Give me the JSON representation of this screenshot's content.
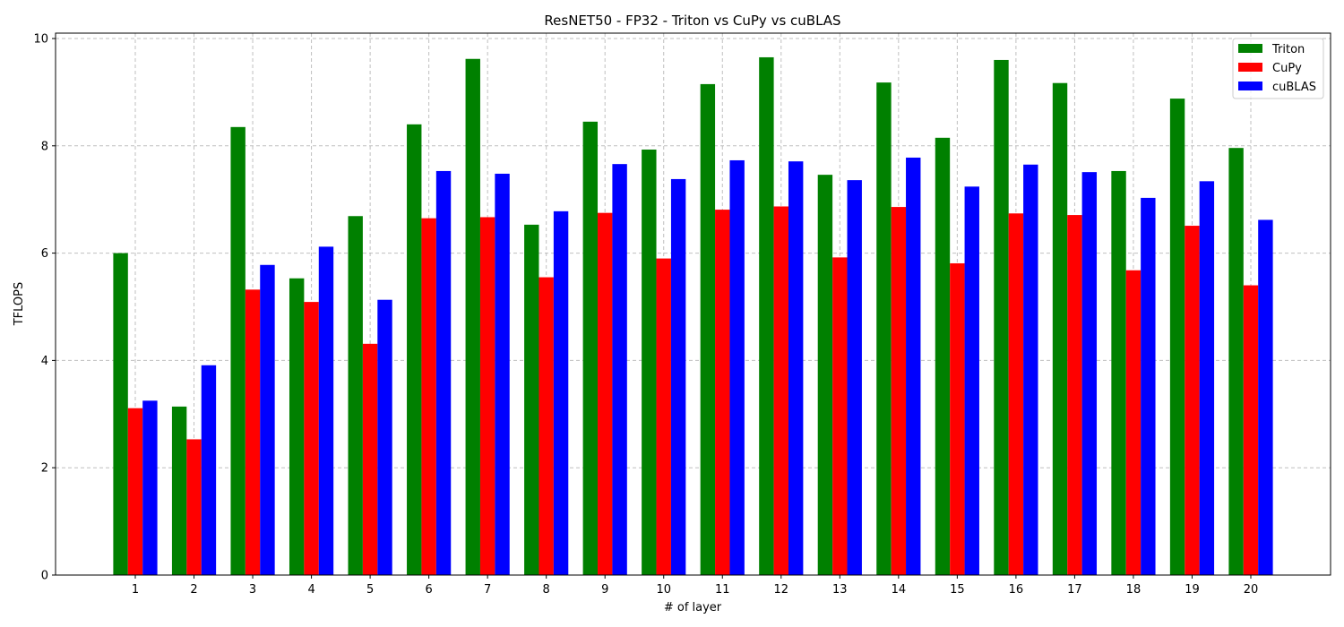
{
  "chart_data": {
    "type": "bar",
    "title": "ResNET50 - FP32 - Triton vs CuPy vs cuBLAS",
    "xlabel": "# of layer",
    "ylabel": "TFLOPS",
    "ylim": [
      0,
      10.1
    ],
    "yticks": [
      0,
      2,
      4,
      6,
      8,
      10
    ],
    "grid": true,
    "legend_position": "top-right",
    "categories": [
      "1",
      "2",
      "3",
      "4",
      "5",
      "6",
      "7",
      "8",
      "9",
      "10",
      "11",
      "12",
      "13",
      "14",
      "15",
      "16",
      "17",
      "18",
      "19",
      "20"
    ],
    "series": [
      {
        "name": "Triton",
        "color": "#008000",
        "values": [
          6.0,
          3.14,
          8.35,
          5.53,
          6.69,
          8.4,
          9.62,
          6.53,
          8.45,
          7.93,
          9.15,
          9.65,
          7.46,
          9.18,
          8.15,
          9.6,
          9.17,
          7.53,
          8.88,
          7.96
        ]
      },
      {
        "name": "CuPy",
        "color": "#ff0000",
        "values": [
          3.11,
          2.53,
          5.32,
          5.09,
          4.31,
          6.65,
          6.67,
          5.55,
          6.75,
          5.9,
          6.81,
          6.87,
          5.92,
          6.86,
          5.81,
          6.74,
          6.71,
          5.68,
          6.51,
          5.4
        ]
      },
      {
        "name": "cuBLAS",
        "color": "#0000ff",
        "values": [
          3.25,
          3.91,
          5.78,
          6.12,
          5.13,
          7.53,
          7.48,
          6.78,
          7.66,
          7.38,
          7.73,
          7.71,
          7.36,
          7.78,
          7.24,
          7.65,
          7.51,
          7.03,
          7.34,
          6.62
        ]
      }
    ]
  }
}
